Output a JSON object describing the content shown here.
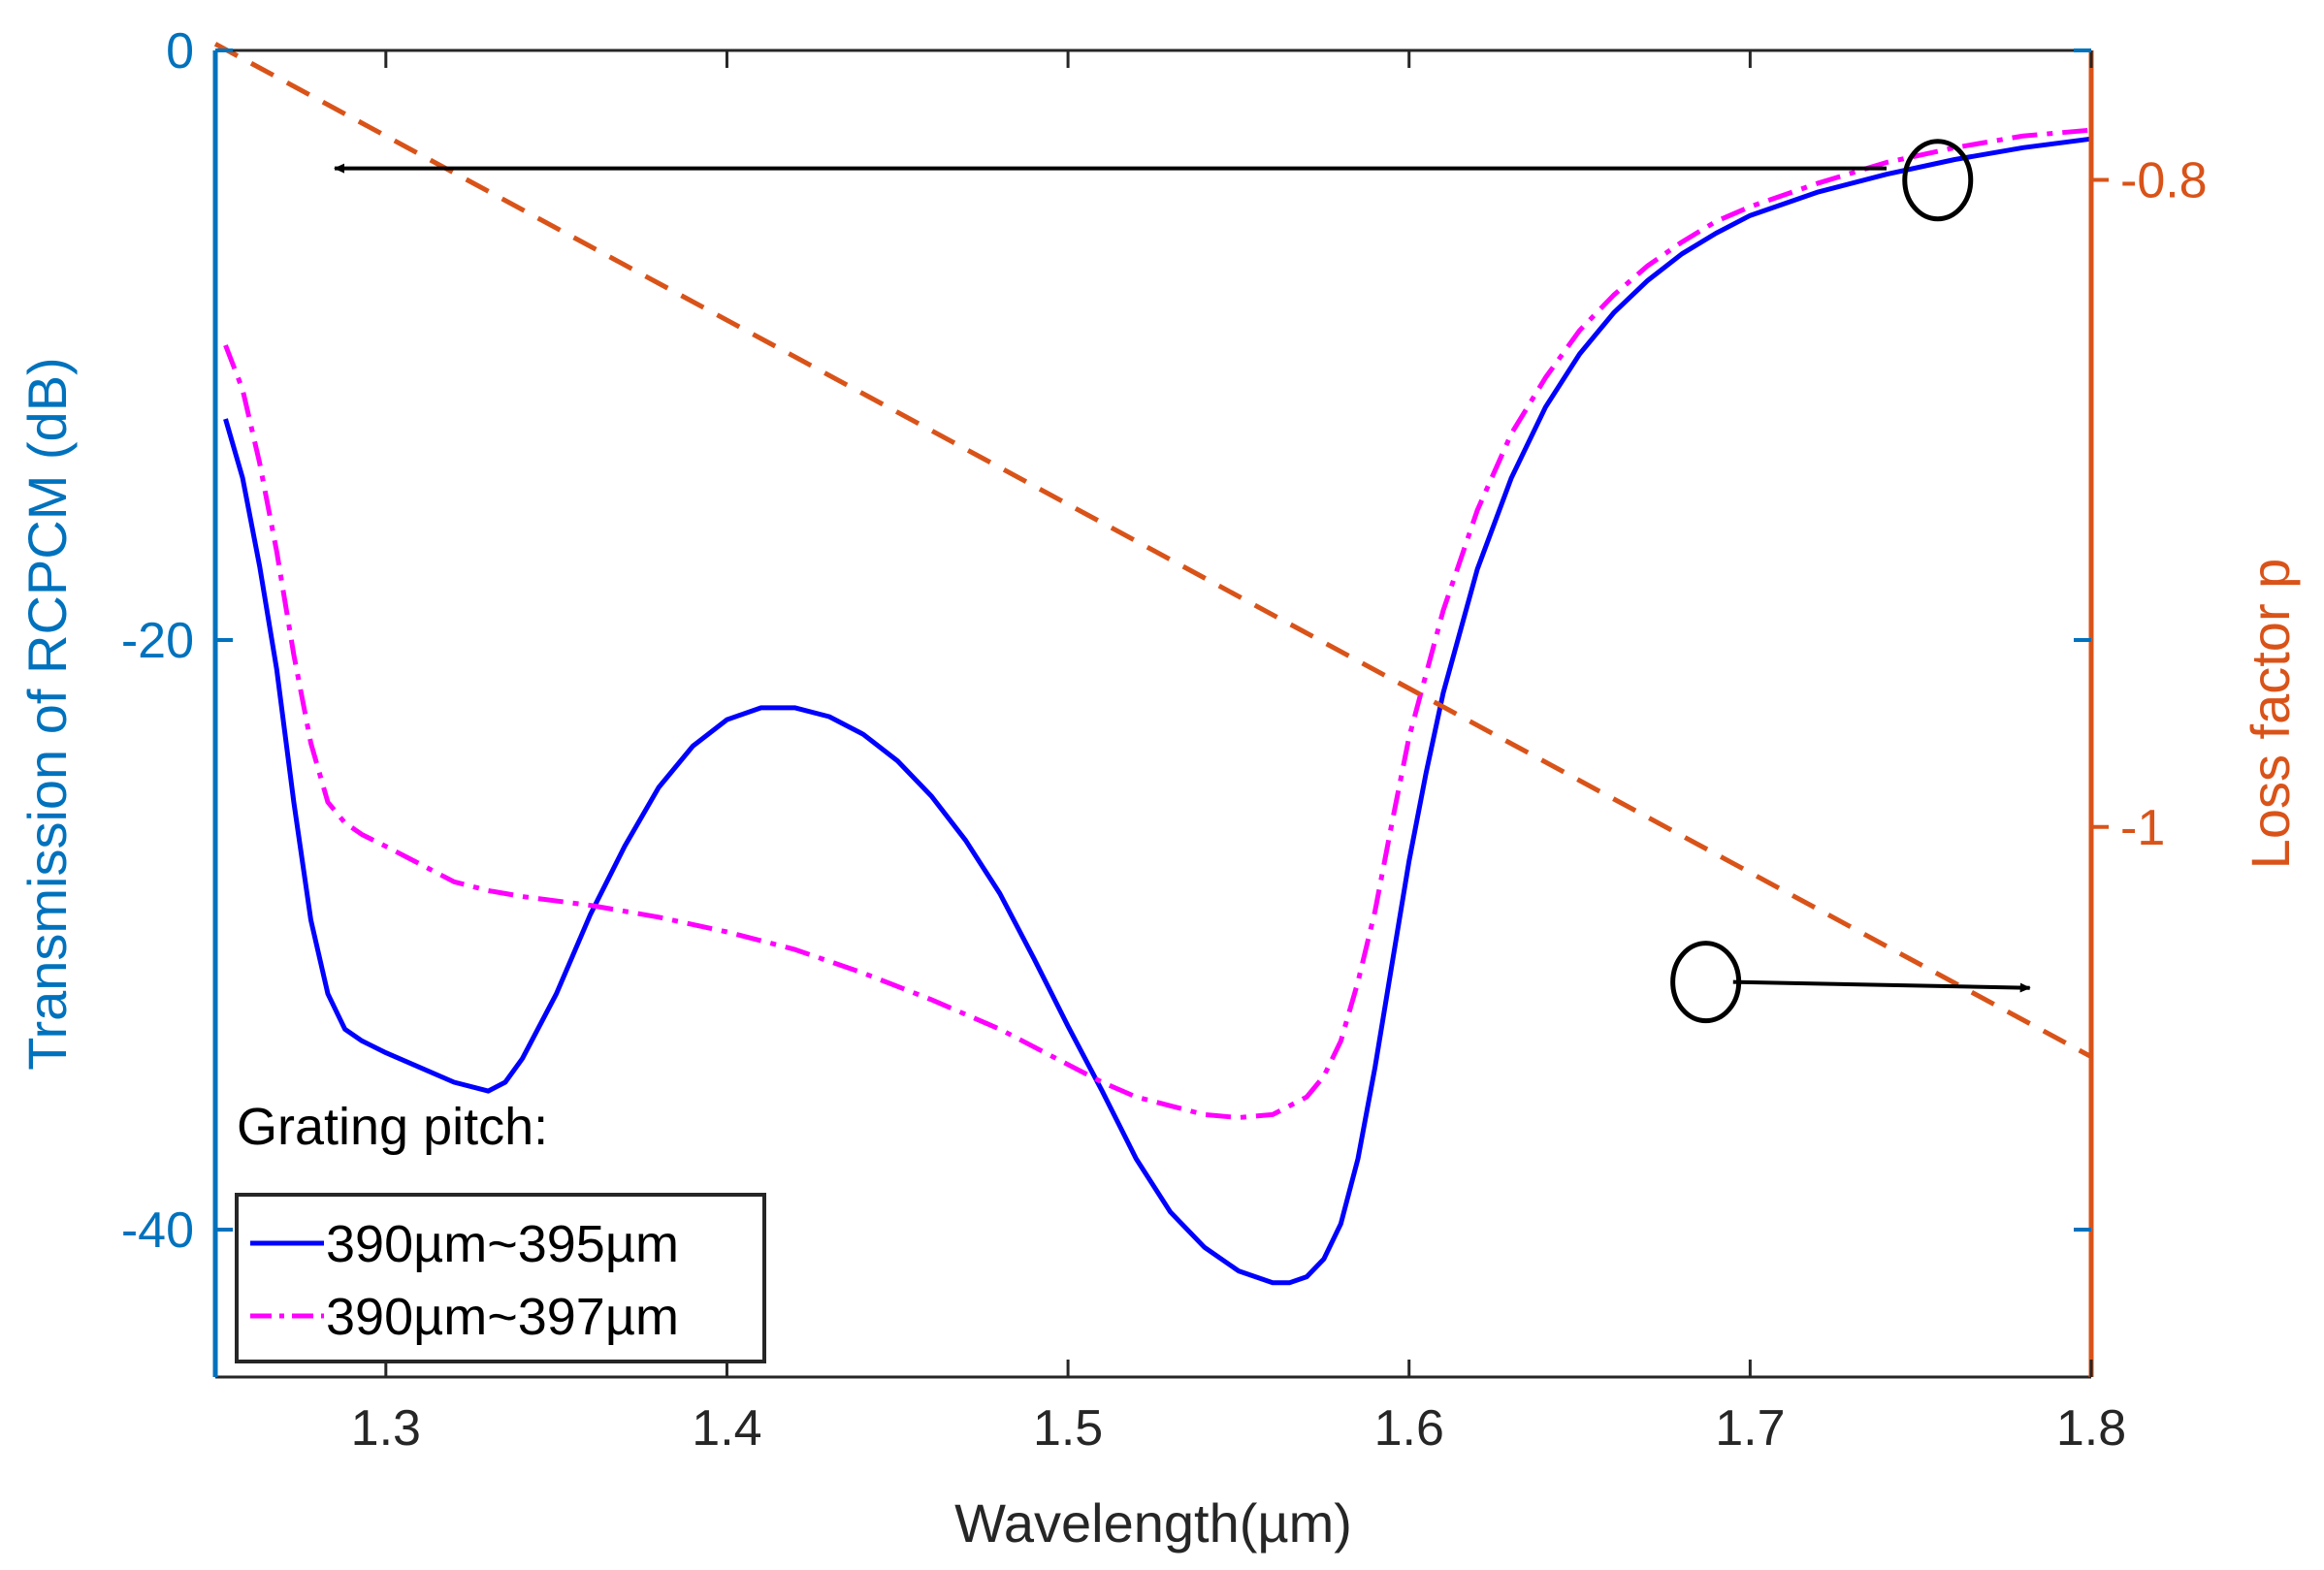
{
  "chart_data": {
    "type": "line",
    "xlabel": "Wavelength(µm)",
    "ylabel_left": "Transmission of RCPCM (dB)",
    "ylabel_right": "Loss factor p",
    "xlim": [
      1.25,
      1.8
    ],
    "ylim_left": [
      -45,
      0
    ],
    "ylim_right": [
      -1.17,
      -0.76
    ],
    "x_ticks": [
      1.3,
      1.4,
      1.5,
      1.6,
      1.7,
      1.8
    ],
    "x_tick_labels": [
      "1.3",
      "1.4",
      "1.5",
      "1.6",
      "1.7",
      "1.8"
    ],
    "y_left_ticks": [
      0,
      -20,
      -40
    ],
    "y_left_tick_labels": [
      "0",
      "-20",
      "-40"
    ],
    "y_right_ticks": [
      -0.8,
      -1
    ],
    "y_right_tick_labels": [
      "-0.8",
      "-1"
    ],
    "colors": {
      "left_axis": "#0072BD",
      "right_axis": "#D95319",
      "series1": "#0000FF",
      "series2": "#FF00FF",
      "series3": "#D95319",
      "annotation": "#000000"
    },
    "legend_title": "Grating pitch:",
    "legend_position": "bottom-left",
    "series": [
      {
        "name": "390µm~395µm",
        "axis": "left",
        "style": "solid",
        "x": [
          1.253,
          1.258,
          1.263,
          1.268,
          1.273,
          1.278,
          1.283,
          1.288,
          1.293,
          1.3,
          1.31,
          1.32,
          1.33,
          1.335,
          1.34,
          1.35,
          1.36,
          1.37,
          1.38,
          1.39,
          1.4,
          1.41,
          1.42,
          1.43,
          1.44,
          1.45,
          1.46,
          1.47,
          1.48,
          1.49,
          1.5,
          1.51,
          1.52,
          1.53,
          1.54,
          1.55,
          1.56,
          1.565,
          1.57,
          1.575,
          1.58,
          1.585,
          1.59,
          1.595,
          1.6,
          1.605,
          1.61,
          1.62,
          1.63,
          1.64,
          1.65,
          1.66,
          1.67,
          1.68,
          1.69,
          1.7,
          1.72,
          1.74,
          1.76,
          1.78,
          1.8
        ],
        "y": [
          -12.5,
          -14.5,
          -17.5,
          -21,
          -25.5,
          -29.5,
          -32,
          -33.2,
          -33.6,
          -34,
          -34.5,
          -35,
          -35.3,
          -35.0,
          -34.2,
          -32,
          -29.3,
          -27,
          -25,
          -23.6,
          -22.7,
          -22.3,
          -22.3,
          -22.6,
          -23.2,
          -24.1,
          -25.3,
          -26.8,
          -28.6,
          -30.8,
          -33.1,
          -35.3,
          -37.6,
          -39.4,
          -40.6,
          -41.4,
          -41.8,
          -41.8,
          -41.6,
          -41.0,
          -39.8,
          -37.6,
          -34.5,
          -31.0,
          -27.5,
          -24.5,
          -21.8,
          -17.6,
          -14.5,
          -12.1,
          -10.3,
          -8.9,
          -7.8,
          -6.9,
          -6.2,
          -5.6,
          -4.8,
          -4.2,
          -3.7,
          -3.3,
          -3.0
        ]
      },
      {
        "name": "390µm~397µm",
        "axis": "left",
        "style": "dashdot",
        "x": [
          1.253,
          1.258,
          1.263,
          1.268,
          1.273,
          1.278,
          1.283,
          1.288,
          1.293,
          1.3,
          1.31,
          1.32,
          1.33,
          1.34,
          1.36,
          1.38,
          1.4,
          1.42,
          1.44,
          1.46,
          1.48,
          1.5,
          1.51,
          1.52,
          1.53,
          1.54,
          1.55,
          1.56,
          1.57,
          1.575,
          1.58,
          1.585,
          1.59,
          1.595,
          1.6,
          1.61,
          1.62,
          1.63,
          1.64,
          1.65,
          1.66,
          1.67,
          1.68,
          1.69,
          1.7,
          1.72,
          1.74,
          1.76,
          1.78,
          1.8
        ],
        "y": [
          -10,
          -11.5,
          -14,
          -17,
          -20.5,
          -23.5,
          -25.5,
          -26.2,
          -26.6,
          -27,
          -27.6,
          -28.2,
          -28.5,
          -28.7,
          -29,
          -29.4,
          -29.9,
          -30.5,
          -31.3,
          -32.2,
          -33.2,
          -34.4,
          -35.0,
          -35.5,
          -35.8,
          -36.1,
          -36.2,
          -36.1,
          -35.5,
          -34.8,
          -33.6,
          -31.6,
          -29.2,
          -26.2,
          -23.3,
          -19.0,
          -15.6,
          -13.0,
          -11.1,
          -9.5,
          -8.3,
          -7.3,
          -6.5,
          -5.8,
          -5.3,
          -4.5,
          -3.8,
          -3.3,
          -2.9,
          -2.7
        ]
      },
      {
        "name": "Loss factor p",
        "axis": "right",
        "style": "dashed",
        "x": [
          1.25,
          1.8
        ],
        "y": [
          -0.758,
          -1.071
        ]
      }
    ],
    "annotations": [
      {
        "circle": [
          1.755,
          -4.4
        ],
        "arrow_from": [
          1.74,
          -4.0
        ],
        "arrow_to": [
          1.285,
          -4.0
        ],
        "arrow_axis": "left",
        "points_to": "left"
      },
      {
        "circle": [
          1.687,
          -31.6
        ],
        "arrow_from": [
          1.695,
          -31.6
        ],
        "arrow_to": [
          1.782,
          -31.8
        ],
        "arrow_axis": "left",
        "points_to": "right"
      }
    ]
  }
}
